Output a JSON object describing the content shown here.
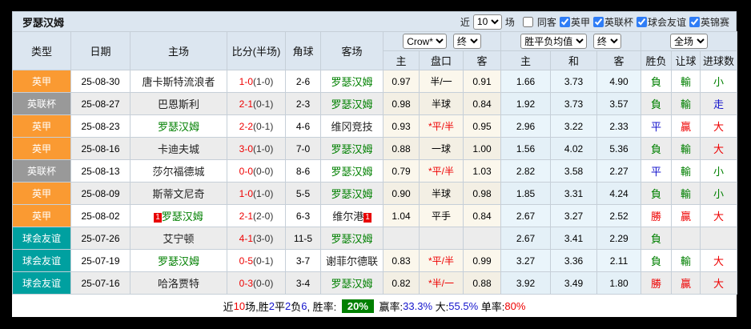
{
  "title": "罗瑟汉姆",
  "toolbar": {
    "near_label": "近",
    "matches_select": "10",
    "matches_label": "场",
    "same_away_label": "同客",
    "same_away_checked": false,
    "league_filters": [
      {
        "label": "英甲",
        "checked": true
      },
      {
        "label": "英联杯",
        "checked": true
      },
      {
        "label": "球会友谊",
        "checked": true
      },
      {
        "label": "英锦赛",
        "checked": true
      }
    ]
  },
  "header": {
    "col_headers": [
      "类型",
      "日期",
      "主场",
      "比分(半场)",
      "角球",
      "客场"
    ],
    "bookmaker_select": "Crow*",
    "final_select_1": "终",
    "avg_select": "胜平负均值",
    "final_select_2": "终",
    "scope_select": "全场",
    "sub_headers": [
      "主",
      "盘口",
      "客",
      "主",
      "和",
      "客",
      "胜负",
      "让球",
      "进球数"
    ]
  },
  "colors": {
    "league": {
      "orange": "#fa9a32",
      "gray": "#999999",
      "teal": "#00a0a0"
    },
    "result": {
      "green": "#008000",
      "red": "#ee0000",
      "blue": "#1414cc"
    }
  },
  "rows": [
    {
      "league": "英甲",
      "league_color": "orange",
      "date": "25-08-30",
      "home": "唐卡斯特流浪者",
      "home_is_self": false,
      "home_rank": "",
      "score": "1-0",
      "half": "(1-0)",
      "corners": "2-6",
      "away": "罗瑟汉姆",
      "away_is_self": true,
      "away_rank": "",
      "odds_home": "0.97",
      "handicap": "半/一",
      "handicap_red": false,
      "odds_away": "0.91",
      "avg_home": "1.66",
      "avg_draw": "3.73",
      "avg_away": "4.90",
      "result": "負",
      "result_color": "green",
      "handicap_result": "輸",
      "handicap_result_color": "green",
      "goals": "小",
      "goals_color": "green"
    },
    {
      "league": "英联杯",
      "league_color": "gray",
      "date": "25-08-27",
      "home": "巴恩斯利",
      "home_is_self": false,
      "home_rank": "",
      "score": "2-1",
      "half": "(0-1)",
      "corners": "2-3",
      "away": "罗瑟汉姆",
      "away_is_self": true,
      "away_rank": "",
      "odds_home": "0.98",
      "handicap": "半球",
      "handicap_red": false,
      "odds_away": "0.84",
      "avg_home": "1.92",
      "avg_draw": "3.73",
      "avg_away": "3.57",
      "result": "負",
      "result_color": "green",
      "handicap_result": "輸",
      "handicap_result_color": "green",
      "goals": "走",
      "goals_color": "blue"
    },
    {
      "league": "英甲",
      "league_color": "orange",
      "date": "25-08-23",
      "home": "罗瑟汉姆",
      "home_is_self": true,
      "home_rank": "",
      "score": "2-2",
      "half": "(0-1)",
      "corners": "4-6",
      "away": "维冈竞技",
      "away_is_self": false,
      "away_rank": "",
      "odds_home": "0.93",
      "handicap": "*平/半",
      "handicap_red": true,
      "odds_away": "0.95",
      "avg_home": "2.96",
      "avg_draw": "3.22",
      "avg_away": "2.33",
      "result": "平",
      "result_color": "blue",
      "handicap_result": "贏",
      "handicap_result_color": "red",
      "goals": "大",
      "goals_color": "red"
    },
    {
      "league": "英甲",
      "league_color": "orange",
      "date": "25-08-16",
      "home": "卡迪夫城",
      "home_is_self": false,
      "home_rank": "",
      "score": "3-0",
      "half": "(1-0)",
      "corners": "7-0",
      "away": "罗瑟汉姆",
      "away_is_self": true,
      "away_rank": "",
      "odds_home": "0.88",
      "handicap": "一球",
      "handicap_red": false,
      "odds_away": "1.00",
      "avg_home": "1.56",
      "avg_draw": "4.02",
      "avg_away": "5.36",
      "result": "負",
      "result_color": "green",
      "handicap_result": "輸",
      "handicap_result_color": "green",
      "goals": "大",
      "goals_color": "red"
    },
    {
      "league": "英联杯",
      "league_color": "gray",
      "date": "25-08-13",
      "home": "莎尔福德城",
      "home_is_self": false,
      "home_rank": "",
      "score": "0-0",
      "half": "(0-0)",
      "corners": "8-6",
      "away": "罗瑟汉姆",
      "away_is_self": true,
      "away_rank": "",
      "odds_home": "0.79",
      "handicap": "*平/半",
      "handicap_red": true,
      "odds_away": "1.03",
      "avg_home": "2.82",
      "avg_draw": "3.58",
      "avg_away": "2.27",
      "result": "平",
      "result_color": "blue",
      "handicap_result": "輸",
      "handicap_result_color": "green",
      "goals": "小",
      "goals_color": "green"
    },
    {
      "league": "英甲",
      "league_color": "orange",
      "date": "25-08-09",
      "home": "斯蒂文尼奇",
      "home_is_self": false,
      "home_rank": "",
      "score": "1-0",
      "half": "(1-0)",
      "corners": "5-5",
      "away": "罗瑟汉姆",
      "away_is_self": true,
      "away_rank": "",
      "odds_home": "0.90",
      "handicap": "半球",
      "handicap_red": false,
      "odds_away": "0.98",
      "avg_home": "1.85",
      "avg_draw": "3.31",
      "avg_away": "4.24",
      "result": "負",
      "result_color": "green",
      "handicap_result": "輸",
      "handicap_result_color": "green",
      "goals": "小",
      "goals_color": "green"
    },
    {
      "league": "英甲",
      "league_color": "orange",
      "date": "25-08-02",
      "home": "罗瑟汉姆",
      "home_is_self": true,
      "home_rank": "1",
      "score": "2-1",
      "half": "(2-0)",
      "corners": "6-3",
      "away": "维尔港",
      "away_is_self": false,
      "away_rank": "1",
      "odds_home": "1.04",
      "handicap": "平手",
      "handicap_red": false,
      "odds_away": "0.84",
      "avg_home": "2.67",
      "avg_draw": "3.27",
      "avg_away": "2.52",
      "result": "勝",
      "result_color": "red",
      "handicap_result": "贏",
      "handicap_result_color": "red",
      "goals": "大",
      "goals_color": "red"
    },
    {
      "league": "球会友谊",
      "league_color": "teal",
      "date": "25-07-26",
      "home": "艾宁顿",
      "home_is_self": false,
      "home_rank": "",
      "score": "4-1",
      "half": "(3-0)",
      "corners": "11-5",
      "away": "罗瑟汉姆",
      "away_is_self": true,
      "away_rank": "",
      "odds_home": "",
      "handicap": "",
      "handicap_red": false,
      "odds_away": "",
      "avg_home": "2.67",
      "avg_draw": "3.41",
      "avg_away": "2.29",
      "result": "負",
      "result_color": "green",
      "handicap_result": "",
      "handicap_result_color": "green",
      "goals": "",
      "goals_color": "green"
    },
    {
      "league": "球会友谊",
      "league_color": "teal",
      "date": "25-07-19",
      "home": "罗瑟汉姆",
      "home_is_self": true,
      "home_rank": "",
      "score": "0-5",
      "half": "(0-1)",
      "corners": "3-7",
      "away": "谢菲尔德联",
      "away_is_self": false,
      "away_rank": "",
      "odds_home": "0.83",
      "handicap": "*平/半",
      "handicap_red": true,
      "odds_away": "0.99",
      "avg_home": "3.27",
      "avg_draw": "3.36",
      "avg_away": "2.11",
      "result": "負",
      "result_color": "green",
      "handicap_result": "輸",
      "handicap_result_color": "green",
      "goals": "大",
      "goals_color": "red"
    },
    {
      "league": "球会友谊",
      "league_color": "teal",
      "date": "25-07-16",
      "home": "哈洛贾特",
      "home_is_self": false,
      "home_rank": "",
      "score": "0-3",
      "half": "(0-0)",
      "corners": "3-4",
      "away": "罗瑟汉姆",
      "away_is_self": true,
      "away_rank": "",
      "odds_home": "0.82",
      "handicap": "*半/一",
      "handicap_red": true,
      "odds_away": "0.88",
      "avg_home": "3.92",
      "avg_draw": "3.49",
      "avg_away": "1.80",
      "result": "勝",
      "result_color": "red",
      "handicap_result": "贏",
      "handicap_result_color": "red",
      "goals": "大",
      "goals_color": "red"
    }
  ],
  "footer": {
    "segments": [
      {
        "text": "近",
        "style": "plain"
      },
      {
        "text": "10",
        "style": "red"
      },
      {
        "text": "场,胜",
        "style": "plain"
      },
      {
        "text": "2",
        "style": "blue"
      },
      {
        "text": "平",
        "style": "plain"
      },
      {
        "text": "2",
        "style": "blue"
      },
      {
        "text": "负",
        "style": "plain"
      },
      {
        "text": "6",
        "style": "blue"
      },
      {
        "text": ", 胜率: ",
        "style": "plain"
      },
      {
        "text": "20%",
        "style": "badge-green"
      },
      {
        "text": " 赢率:",
        "style": "plain"
      },
      {
        "text": "33.3%",
        "style": "blue"
      },
      {
        "text": " 大:",
        "style": "plain"
      },
      {
        "text": "55.5%",
        "style": "blue"
      },
      {
        "text": " 单率:",
        "style": "plain"
      },
      {
        "text": "80%",
        "style": "red"
      }
    ]
  }
}
